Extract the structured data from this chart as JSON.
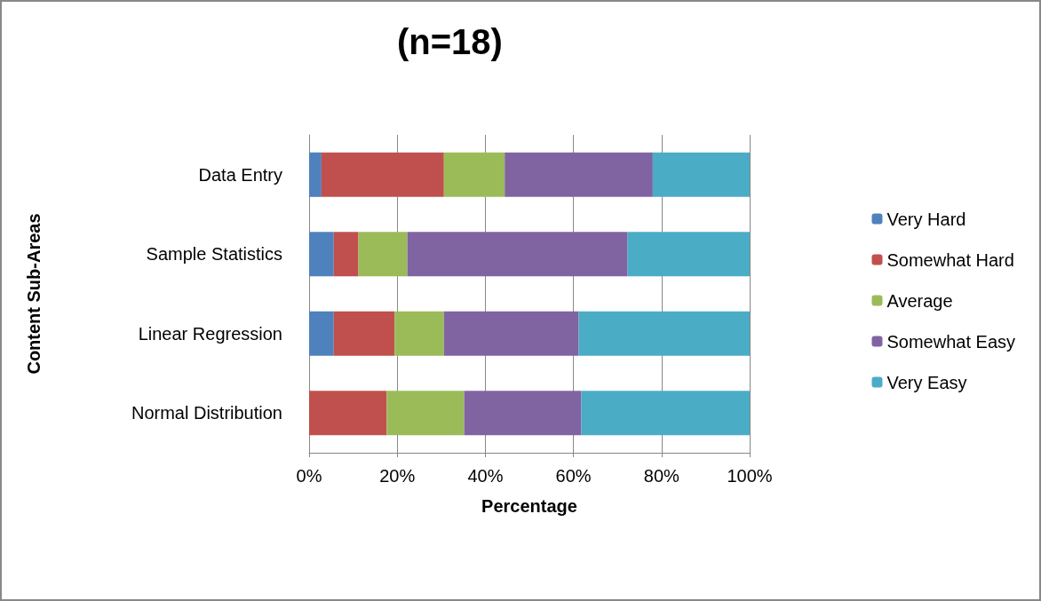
{
  "chart_data": {
    "type": "bar",
    "orientation": "horizontal",
    "stacked": true,
    "title": "(n=18)",
    "xlabel": "Percentage",
    "ylabel": "Content Sub-Areas",
    "categories": [
      "Data Entry",
      "Sample Statistics",
      "Linear Regression",
      "Normal Distribution"
    ],
    "series": [
      {
        "name": "Very Hard",
        "color": "#4f81bd",
        "values": [
          2.8,
          5.6,
          5.6,
          0
        ]
      },
      {
        "name": "Somewhat Hard",
        "color": "#c0504d",
        "values": [
          27.8,
          5.6,
          13.8,
          17.6
        ]
      },
      {
        "name": "Average",
        "color": "#9bbb59",
        "values": [
          13.8,
          11.1,
          11.2,
          17.6
        ]
      },
      {
        "name": "Somewhat Easy",
        "color": "#8064a2",
        "values": [
          33.6,
          50,
          30.6,
          26.6
        ]
      },
      {
        "name": "Very Easy",
        "color": "#4bacc6",
        "values": [
          22,
          27.7,
          38.8,
          38.2
        ]
      }
    ],
    "xlim": [
      0,
      100
    ],
    "xticks": [
      {
        "value": 0,
        "label": "0%"
      },
      {
        "value": 20,
        "label": "20%"
      },
      {
        "value": 40,
        "label": "40%"
      },
      {
        "value": 60,
        "label": "60%"
      },
      {
        "value": 80,
        "label": "80%"
      },
      {
        "value": 100,
        "label": "100%"
      }
    ],
    "grid": "x",
    "legend": "right"
  }
}
